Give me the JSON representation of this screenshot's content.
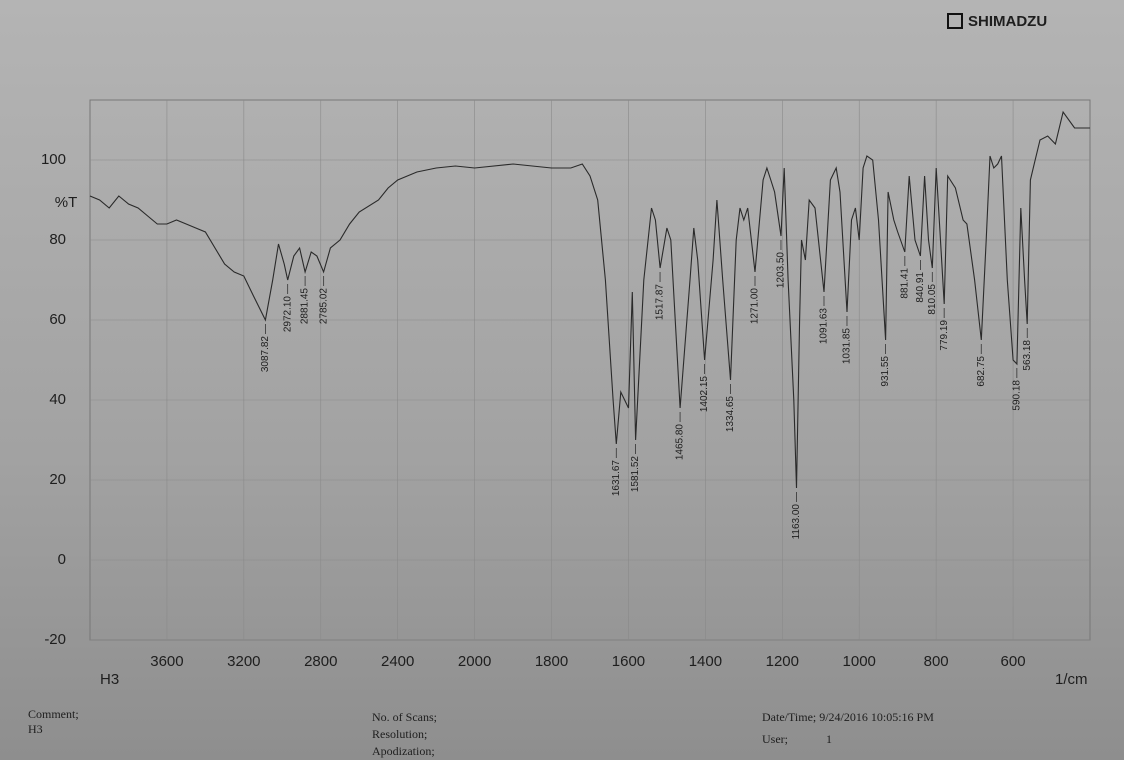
{
  "header": {
    "brand": "SHIMADZU"
  },
  "chart_data": {
    "type": "line",
    "sample": "H3",
    "ylabel": "%T",
    "xlabel": "1/cm",
    "color": "#2a2a2a",
    "grid": true,
    "xlim": [
      4000,
      400
    ],
    "x_scale_change": 2000,
    "xticks": [
      3600,
      3200,
      2800,
      2400,
      2000,
      1800,
      1600,
      1400,
      1200,
      1000,
      800,
      600
    ],
    "ylim": [
      -20,
      115
    ],
    "yticks": [
      -20,
      0,
      20,
      40,
      60,
      80,
      100
    ],
    "x": [
      4000,
      3950,
      3900,
      3850,
      3800,
      3750,
      3700,
      3650,
      3600,
      3550,
      3500,
      3450,
      3400,
      3350,
      3300,
      3250,
      3200,
      3150,
      3087.82,
      3050,
      3020,
      2990,
      2972.1,
      2940,
      2910,
      2881.45,
      2850,
      2820,
      2785.02,
      2750,
      2700,
      2650,
      2600,
      2500,
      2450,
      2400,
      2300,
      2200,
      2100,
      2000,
      1900,
      1800,
      1750,
      1720,
      1700,
      1680,
      1660,
      1640,
      1631.67,
      1620,
      1600,
      1590,
      1581.52,
      1560,
      1540,
      1530,
      1517.87,
      1500,
      1490,
      1465.8,
      1440,
      1430,
      1420,
      1402.15,
      1380,
      1370,
      1355,
      1334.65,
      1320,
      1310,
      1300,
      1290,
      1271,
      1250,
      1240,
      1230,
      1220,
      1203.5,
      1195,
      1185,
      1170,
      1163,
      1155,
      1150,
      1140,
      1130,
      1115,
      1091.63,
      1075,
      1060,
      1050,
      1031.85,
      1020,
      1010,
      1000,
      990,
      980,
      965,
      950,
      931.55,
      925,
      910,
      900,
      881.41,
      870,
      855,
      840.91,
      830,
      820,
      810.05,
      800,
      790,
      779.19,
      770,
      750,
      730,
      720,
      700,
      682.75,
      670,
      660,
      650,
      640,
      630,
      615,
      600,
      590.18,
      580,
      570,
      563.18,
      555,
      545,
      530,
      510,
      490,
      470,
      440,
      400
    ],
    "values": [
      91,
      90,
      88,
      91,
      89,
      88,
      86,
      84,
      84,
      85,
      84,
      83,
      82,
      78,
      74,
      72,
      71,
      66,
      60,
      70,
      79,
      74,
      70,
      76,
      78,
      72,
      77,
      76,
      72,
      78,
      80,
      84,
      87,
      90,
      93,
      95,
      97,
      98,
      98.5,
      98,
      99,
      98,
      98,
      99,
      96,
      90,
      70,
      40,
      29,
      42,
      38,
      67,
      30,
      70,
      88,
      85,
      73,
      83,
      80,
      38,
      70,
      83,
      75,
      50,
      75,
      90,
      70,
      45,
      80,
      88,
      85,
      88,
      72,
      95,
      98,
      95,
      92,
      81,
      98,
      70,
      40,
      18,
      60,
      80,
      75,
      90,
      88,
      67,
      95,
      98,
      92,
      62,
      85,
      88,
      80,
      98,
      101,
      100,
      85,
      55,
      92,
      85,
      82,
      77,
      96,
      80,
      76,
      96,
      80,
      73,
      98,
      82,
      64,
      96,
      93,
      85,
      84,
      70,
      55,
      80,
      101,
      98,
      99,
      101,
      70,
      50,
      49,
      88,
      70,
      59,
      95,
      99,
      105,
      106,
      104,
      112,
      108,
      108
    ],
    "peaks": {
      "x": [
        3087.82,
        2972.1,
        2881.45,
        2785.02,
        1631.67,
        1581.52,
        1517.87,
        1465.8,
        1402.15,
        1334.65,
        1271,
        1203.5,
        1163,
        1091.63,
        1031.85,
        931.55,
        881.41,
        840.91,
        810.05,
        779.19,
        682.75,
        590.18,
        563.18
      ],
      "x_labels": [
        "3087.82",
        "2972.10",
        "2881.45",
        "2785.02",
        "1631.67",
        "1581.52",
        "1517.87",
        "1465.80",
        "1402.15",
        "1334.65",
        "1271.00",
        "1203.50",
        "1163.00",
        "1091.63",
        "1031.85",
        "931.55",
        "881.41",
        "840.91",
        "810.05",
        "779.19",
        "682.75",
        "590.18",
        "563.18"
      ],
      "values": [
        60,
        70,
        72,
        72,
        29,
        30,
        73,
        38,
        50,
        45,
        72,
        81,
        18,
        67,
        62,
        55,
        77,
        76,
        73,
        64,
        55,
        49,
        59
      ]
    }
  },
  "footer": {
    "comment_label": "Comment;",
    "comment": "H3",
    "scans": "No. of Scans;",
    "resolution": "Resolution;",
    "apodization": "Apodization;",
    "datetime": "Date/Time; 9/24/2016 10:05:16 PM",
    "user_label": "User;",
    "user": "1"
  }
}
